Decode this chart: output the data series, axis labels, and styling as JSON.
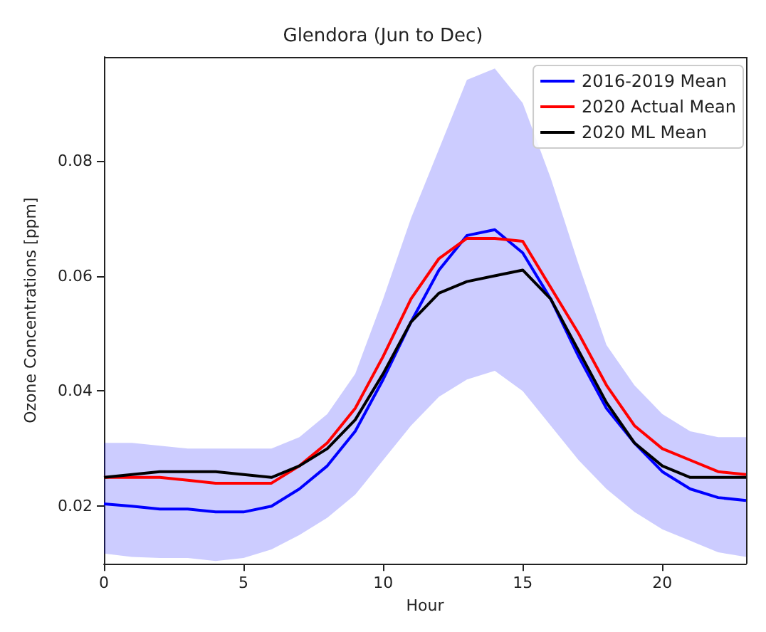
{
  "chart_data": {
    "type": "line",
    "title": "Glendora (Jun to Dec)",
    "xlabel": "Hour",
    "ylabel": "Ozone Concentrations [ppm]",
    "x": [
      0,
      1,
      2,
      3,
      4,
      5,
      6,
      7,
      8,
      9,
      10,
      11,
      12,
      13,
      14,
      15,
      16,
      17,
      18,
      19,
      20,
      21,
      22,
      23
    ],
    "xlim": [
      0,
      23
    ],
    "xticks": [
      0,
      5,
      10,
      15,
      20
    ],
    "ylim": [
      0.01,
      0.098
    ],
    "yticks": [
      0.02,
      0.04,
      0.06,
      0.08
    ],
    "grid": false,
    "legend": "top right",
    "marker": "none",
    "line_style": "solid",
    "series": [
      {
        "name": "2016-2019 Mean",
        "color": "#0000ff",
        "values": [
          0.0204,
          0.02,
          0.0195,
          0.0195,
          0.019,
          0.019,
          0.02,
          0.023,
          0.027,
          0.033,
          0.042,
          0.052,
          0.061,
          0.067,
          0.068,
          0.064,
          0.056,
          0.046,
          0.037,
          0.031,
          0.026,
          0.023,
          0.0215,
          0.021
        ],
        "lower": [
          0.0118,
          0.0112,
          0.011,
          0.011,
          0.0105,
          0.011,
          0.0125,
          0.015,
          0.018,
          0.022,
          0.028,
          0.034,
          0.039,
          0.042,
          0.0435,
          0.04,
          0.034,
          0.028,
          0.023,
          0.019,
          0.016,
          0.014,
          0.012,
          0.0112
        ],
        "upper": [
          0.031,
          0.031,
          0.0305,
          0.03,
          0.03,
          0.03,
          0.03,
          0.032,
          0.036,
          0.043,
          0.056,
          0.07,
          0.082,
          0.094,
          0.096,
          0.09,
          0.077,
          0.062,
          0.048,
          0.041,
          0.036,
          0.033,
          0.032,
          0.032
        ]
      },
      {
        "name": "2020 Actual Mean",
        "color": "#ff0000",
        "values": [
          0.025,
          0.025,
          0.025,
          0.0245,
          0.024,
          0.024,
          0.024,
          0.027,
          0.031,
          0.037,
          0.046,
          0.056,
          0.063,
          0.0665,
          0.0665,
          0.066,
          0.058,
          0.05,
          0.041,
          0.034,
          0.03,
          0.028,
          0.026,
          0.0255
        ]
      },
      {
        "name": "2020 ML Mean",
        "color": "#000000",
        "values": [
          0.025,
          0.0255,
          0.026,
          0.026,
          0.026,
          0.0255,
          0.025,
          0.027,
          0.03,
          0.035,
          0.043,
          0.052,
          0.057,
          0.059,
          0.06,
          0.061,
          0.056,
          0.047,
          0.038,
          0.031,
          0.027,
          0.025,
          0.025,
          0.025
        ]
      }
    ]
  }
}
